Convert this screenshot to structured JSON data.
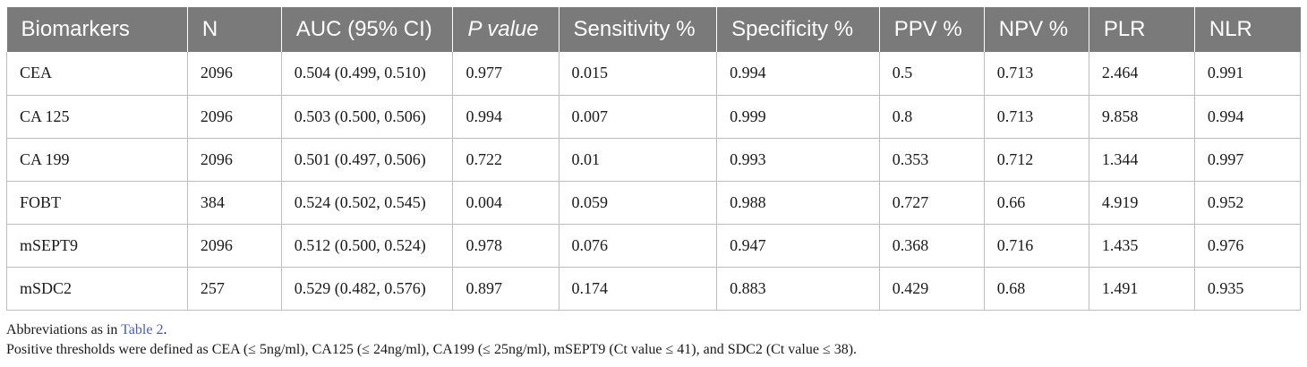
{
  "table": {
    "headers": [
      "Biomarkers",
      "N",
      "AUC (95% CI)",
      "P value",
      "Sensitivity %",
      "Specificity %",
      "PPV %",
      "NPV %",
      "PLR",
      "NLR"
    ],
    "rows": [
      [
        "CEA",
        "2096",
        "0.504 (0.499, 0.510)",
        "0.977",
        "0.015",
        "0.994",
        "0.5",
        "0.713",
        "2.464",
        "0.991"
      ],
      [
        "CA 125",
        "2096",
        "0.503 (0.500, 0.506)",
        "0.994",
        "0.007",
        "0.999",
        "0.8",
        "0.713",
        "9.858",
        "0.994"
      ],
      [
        "CA 199",
        "2096",
        "0.501 (0.497, 0.506)",
        "0.722",
        "0.01",
        "0.993",
        "0.353",
        "0.712",
        "1.344",
        "0.997"
      ],
      [
        "FOBT",
        "384",
        "0.524 (0.502, 0.545)",
        "0.004",
        "0.059",
        "0.988",
        "0.727",
        "0.66",
        "4.919",
        "0.952"
      ],
      [
        "mSEPT9",
        "2096",
        "0.512 (0.500, 0.524)",
        "0.978",
        "0.076",
        "0.947",
        "0.368",
        "0.716",
        "1.435",
        "0.976"
      ],
      [
        "mSDC2",
        "257",
        "0.529 (0.482, 0.576)",
        "0.897",
        "0.174",
        "0.883",
        "0.429",
        "0.68",
        "1.491",
        "0.935"
      ]
    ]
  },
  "notes": {
    "abbrev_prefix": "Abbreviations as in ",
    "abbrev_link": "Table 2",
    "abbrev_suffix": ".",
    "thresholds": "Positive thresholds were defined as CEA (≤ 5ng/ml), CA125 (≤ 24ng/ml), CA199 (≤ 25ng/ml), mSEPT9 (Ct value ≤ 41), and SDC2 (Ct value ≤ 38)."
  },
  "colors": {
    "header_bg": "#7a7a7a",
    "link": "#4a5fa8"
  }
}
